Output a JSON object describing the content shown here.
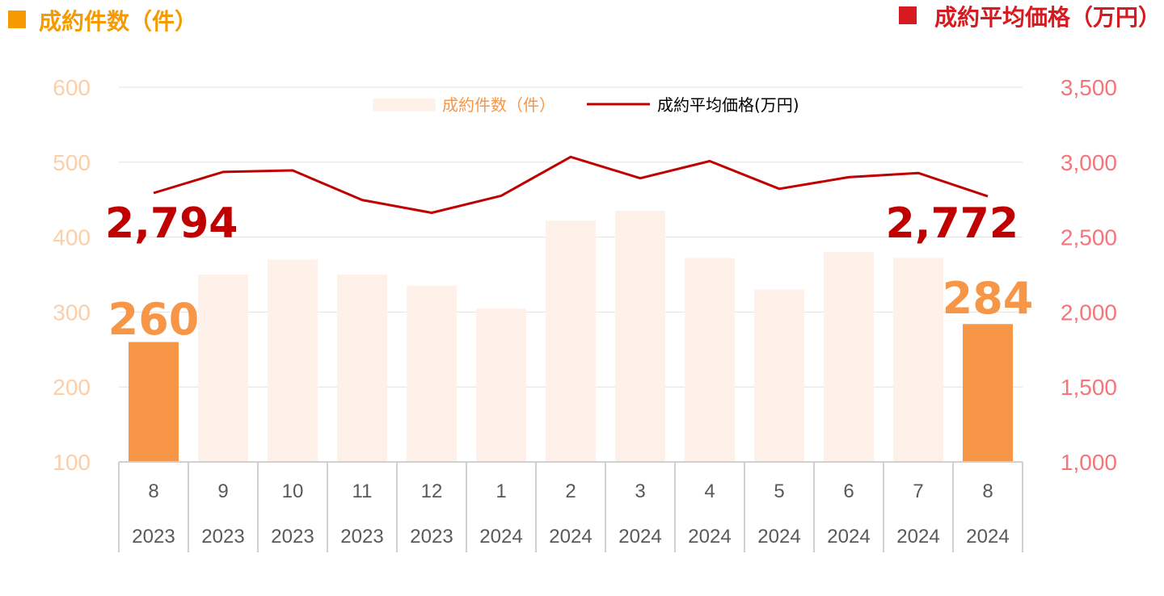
{
  "chart_data": {
    "type": "bar+line",
    "left_title": "成約件数（件）",
    "right_title": "成約平均価格（万円）",
    "legend": {
      "bar_label": "成約件数（件）",
      "line_label": "成約平均価格(万円)",
      "placement": "top-center"
    },
    "categories": [
      {
        "month": "8",
        "year": "2023"
      },
      {
        "month": "9",
        "year": "2023"
      },
      {
        "month": "10",
        "year": "2023"
      },
      {
        "month": "11",
        "year": "2023"
      },
      {
        "month": "12",
        "year": "2023"
      },
      {
        "month": "1",
        "year": "2024"
      },
      {
        "month": "2",
        "year": "2024"
      },
      {
        "month": "3",
        "year": "2024"
      },
      {
        "month": "4",
        "year": "2024"
      },
      {
        "month": "5",
        "year": "2024"
      },
      {
        "month": "6",
        "year": "2024"
      },
      {
        "month": "7",
        "year": "2024"
      },
      {
        "month": "8",
        "year": "2024"
      }
    ],
    "series": [
      {
        "name": "成約件数（件）",
        "type": "bar",
        "axis": "left",
        "values": [
          260,
          350,
          370,
          350,
          335,
          305,
          422,
          435,
          372,
          330,
          380,
          372,
          284
        ]
      },
      {
        "name": "成約平均価格(万円)",
        "type": "line",
        "axis": "right",
        "values": [
          2794,
          2935,
          2945,
          2748,
          2662,
          2776,
          3035,
          2893,
          3007,
          2822,
          2900,
          2928,
          2772
        ]
      }
    ],
    "left_axis": {
      "ylim": [
        100,
        600
      ],
      "ticks": [
        "100",
        "200",
        "300",
        "400",
        "500",
        "600"
      ]
    },
    "right_axis": {
      "ylim": [
        1000,
        3500
      ],
      "ticks": [
        "1,000",
        "1,500",
        "2,000",
        "2,500",
        "3,000",
        "3,500"
      ]
    },
    "highlight_labels": {
      "first_bar": "260",
      "last_bar": "284",
      "first_line": "2,794",
      "last_line": "2,772"
    },
    "highlighted_bars": [
      0,
      12
    ],
    "grid": true,
    "colors": {
      "left_title": "#f59a00",
      "right_title": "#d71920",
      "bar_highlight": "#f79646",
      "bar_normal": "#fdf1e9",
      "line": "#c00000",
      "left_ticks": "#fbcfa9",
      "right_ticks": "#f4767a",
      "bar_label": "#f79646",
      "line_label": "#c00000",
      "grid": "#e3e3e3",
      "axis": "#d0d0d0",
      "x_label": "#595959"
    }
  }
}
